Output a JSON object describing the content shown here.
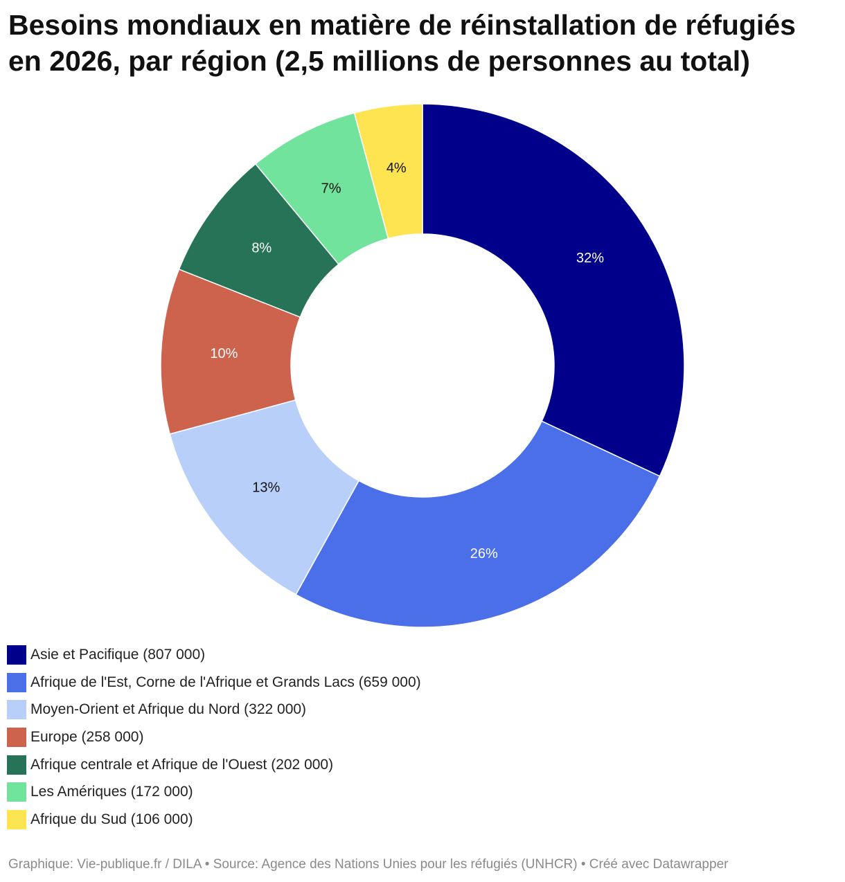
{
  "chart_data": {
    "type": "pie",
    "title": "Besoins mondiaux en matière de réinstallation de réfugiés en 2026, par région (2,5 millions de personnes au total)",
    "series": [
      {
        "name": "Asie et Pacifique",
        "value": 807000,
        "label": "32%",
        "legend": "Asie et Pacifique (807 000)",
        "color": "#00008b",
        "text_color": "#ffffff"
      },
      {
        "name": "Afrique de l'Est, Corne de l'Afrique et Grands Lacs",
        "value": 659000,
        "label": "26%",
        "legend": "Afrique de l'Est, Corne de l'Afrique et Grands Lacs (659 000)",
        "color": "#4a6fe8",
        "text_color": "#ffffff"
      },
      {
        "name": "Moyen-Orient et Afrique du Nord",
        "value": 322000,
        "label": "13%",
        "legend": "Moyen-Orient et Afrique du Nord (322 000)",
        "color": "#b8cff9",
        "text_color": "#111111"
      },
      {
        "name": "Europe",
        "value": 258000,
        "label": "10%",
        "legend": "Europe (258 000)",
        "color": "#cd624d",
        "text_color": "#ffffff"
      },
      {
        "name": "Afrique centrale et Afrique de l'Ouest",
        "value": 202000,
        "label": "8%",
        "legend": "Afrique centrale et Afrique de l'Ouest (202 000)",
        "color": "#277357",
        "text_color": "#ffffff"
      },
      {
        "name": "Les Amériques",
        "value": 172000,
        "label": "7%",
        "legend": "Les Amériques (172 000)",
        "color": "#71e39d",
        "text_color": "#111111"
      },
      {
        "name": "Afrique du Sud",
        "value": 106000,
        "label": "4%",
        "legend": "Afrique du Sud (106 000)",
        "color": "#ffe451",
        "text_color": "#111111"
      }
    ]
  },
  "footer": "Graphique: Vie-publique.fr / DILA • Source: Agence des Nations Unies pour les réfugiés (UNHCR) • Créé avec Datawrapper"
}
